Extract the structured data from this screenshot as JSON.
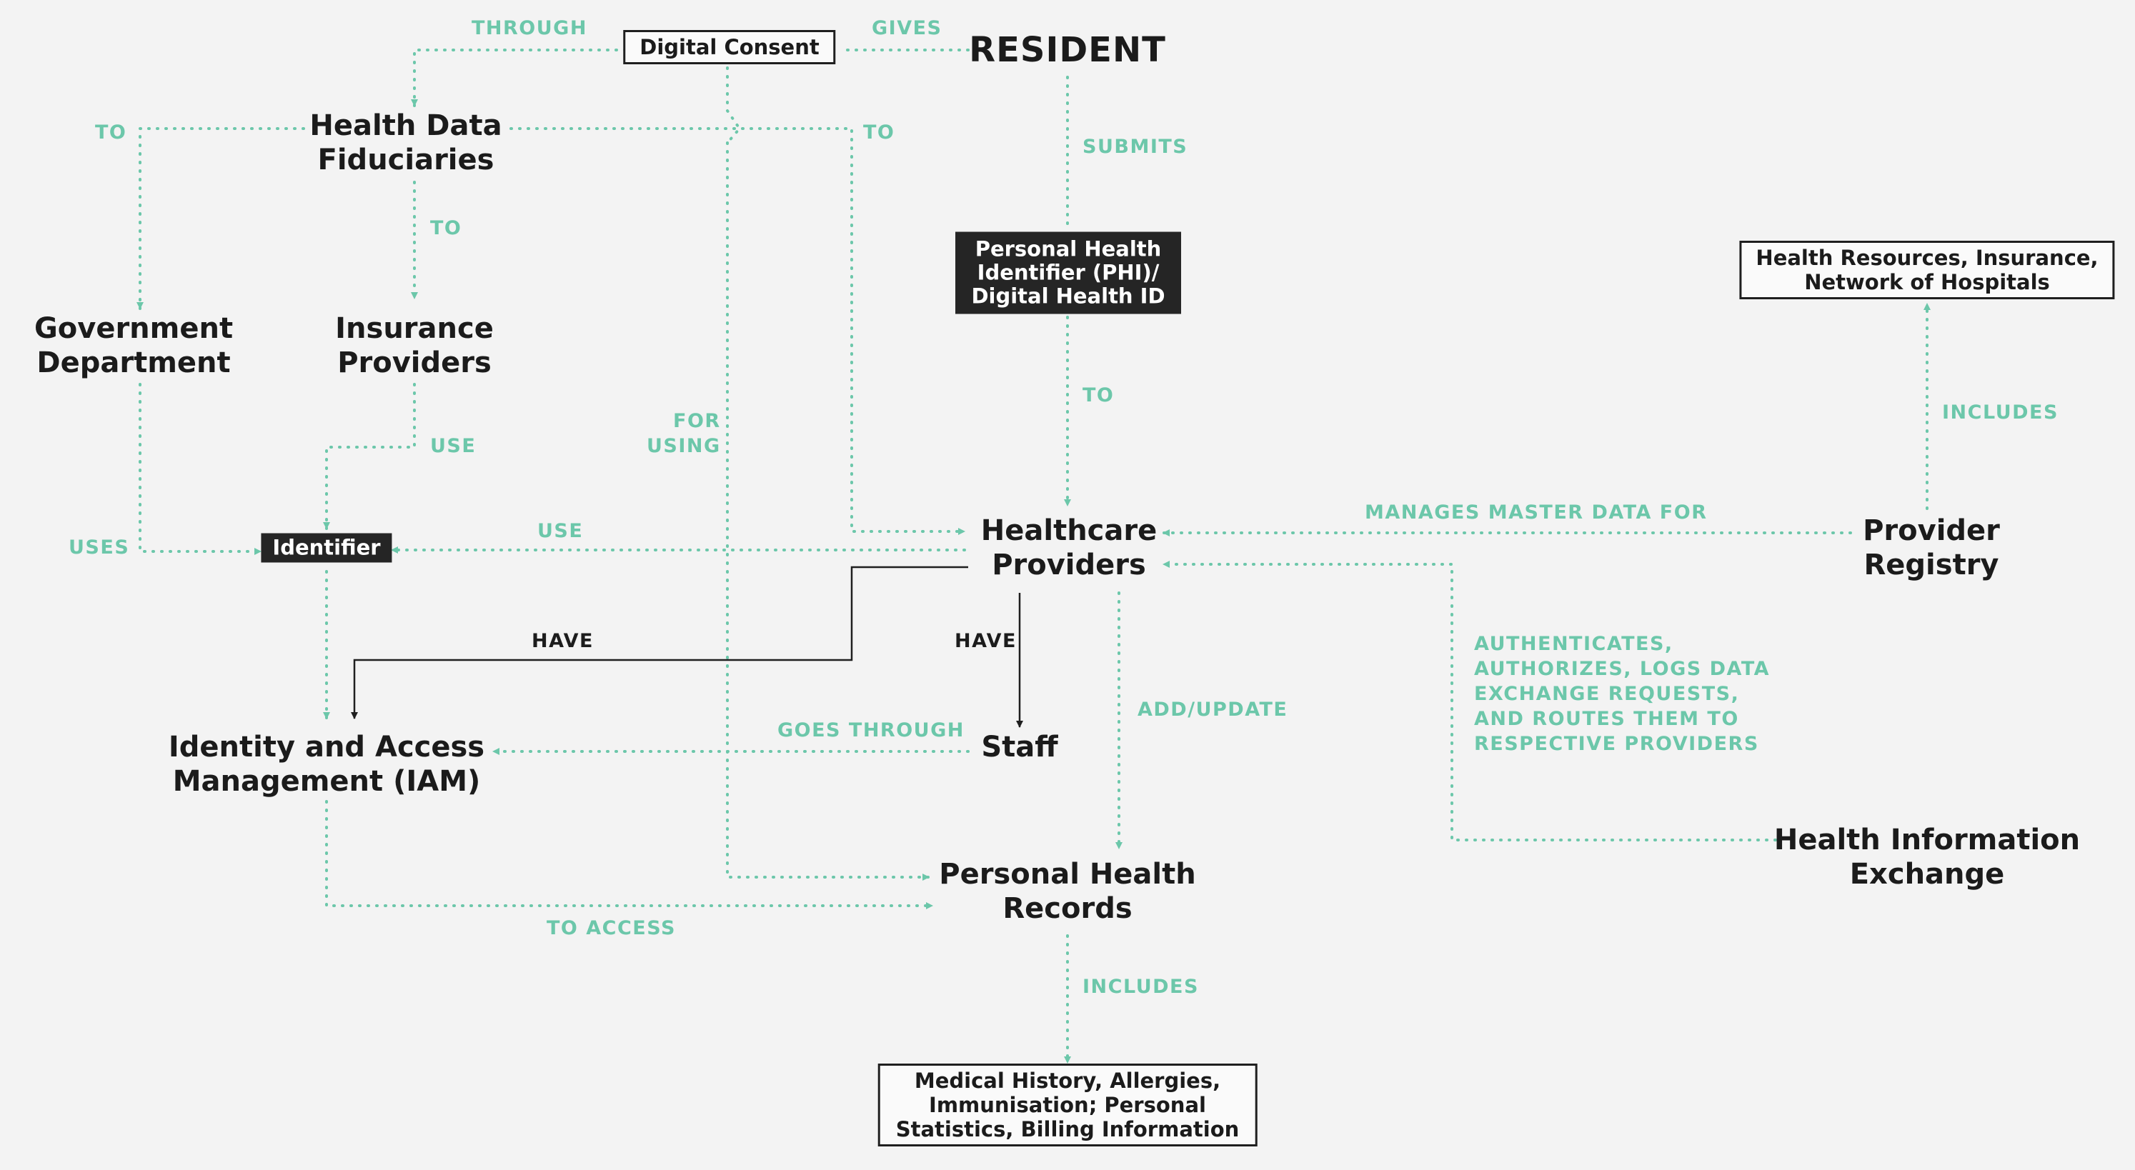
{
  "nodes": {
    "resident": "RESIDENT",
    "digital_consent": "Digital Consent",
    "hdf": [
      "Health Data",
      "Fiduciaries"
    ],
    "gov": [
      "Government",
      "Department"
    ],
    "insurance": [
      "Insurance",
      "Providers"
    ],
    "phi": [
      "Personal Health",
      "Identifier (PHI)/",
      "Digital Health ID"
    ],
    "hr": [
      "Health Resources, Insurance,",
      "Network of Hospitals"
    ],
    "identifier": "Identifier",
    "hcp": [
      "Healthcare",
      "Providers"
    ],
    "registry": [
      "Provider",
      "Registry"
    ],
    "iam": [
      "Identity and Access",
      "Management (IAM)"
    ],
    "staff": "Staff",
    "phr": [
      "Personal Health",
      "Records"
    ],
    "hie": [
      "Health Information",
      "Exchange"
    ],
    "mh": [
      "Medical History, Allergies,",
      "Immunisation; Personal",
      "Statistics, Billing Information"
    ]
  },
  "labels": {
    "through": "THROUGH",
    "gives": "GIVES",
    "to_gov": "TO",
    "to_hcp": "TO",
    "to_ins": "TO",
    "submits": "SUBMITS",
    "to_phi": "TO",
    "includes_hr": "INCLUDES",
    "for_using": [
      "FOR",
      "USING"
    ],
    "use_ins": "USE",
    "use_hcp": "USE",
    "uses_gov": "USES",
    "manages": "MANAGES MASTER DATA FOR",
    "have_iam": "HAVE",
    "have_staff": "HAVE",
    "goes_through": "GOES THROUGH",
    "add_update": "ADD/UPDATE",
    "hie_desc": [
      "AUTHENTICATES,",
      "AUTHORIZES, LOGS DATA",
      "EXCHANGE REQUESTS,",
      "AND ROUTES THEM TO",
      "RESPECTIVE PROVIDERS"
    ],
    "to_access": "TO ACCESS",
    "includes_mh": "INCLUDES"
  },
  "colors": {
    "accent": "#6cc7aa",
    "ink": "#1f1f1f",
    "background": "#f3f3f3",
    "dark_box": "#252525"
  }
}
